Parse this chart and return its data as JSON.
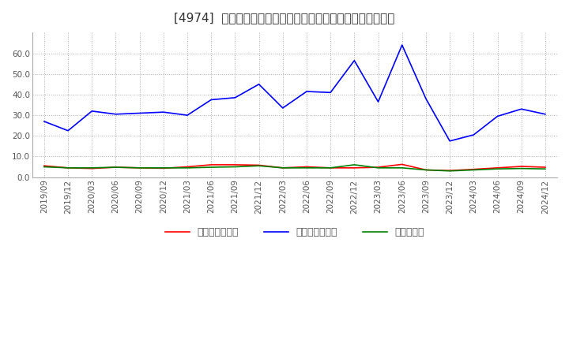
{
  "title": "[4974]  売上債権回転率、買入債務回転率、在庫回転率の推移",
  "dates": [
    "2019/09",
    "2019/12",
    "2020/03",
    "2020/06",
    "2020/09",
    "2020/12",
    "2021/03",
    "2021/06",
    "2021/09",
    "2021/12",
    "2022/03",
    "2022/06",
    "2022/09",
    "2022/12",
    "2023/03",
    "2023/06",
    "2023/09",
    "2023/12",
    "2024/03",
    "2024/06",
    "2024/09",
    "2024/12"
  ],
  "receivables_turnover": [
    5.5,
    4.5,
    4.2,
    4.8,
    4.5,
    4.3,
    5.0,
    6.0,
    6.0,
    5.8,
    4.5,
    5.0,
    4.5,
    4.5,
    4.8,
    6.2,
    3.5,
    3.2,
    3.8,
    4.5,
    5.2,
    4.8
  ],
  "payables_turnover": [
    27.0,
    22.5,
    32.0,
    30.5,
    31.0,
    31.5,
    30.0,
    37.5,
    38.5,
    45.0,
    33.5,
    41.5,
    41.0,
    56.5,
    36.5,
    64.0,
    38.0,
    17.5,
    20.5,
    29.5,
    33.0,
    30.5
  ],
  "inventory_turnover": [
    5.0,
    4.5,
    4.5,
    4.8,
    4.5,
    4.5,
    4.5,
    4.8,
    5.0,
    5.5,
    4.5,
    4.5,
    4.5,
    6.0,
    4.5,
    4.5,
    3.5,
    3.0,
    3.5,
    4.0,
    4.2,
    4.0
  ],
  "receivables_color": "#ff0000",
  "payables_color": "#0000ff",
  "inventory_color": "#008000",
  "ylim": [
    0.0,
    70.0
  ],
  "yticks": [
    0.0,
    10.0,
    20.0,
    30.0,
    40.0,
    50.0,
    60.0
  ],
  "background_color": "#ffffff",
  "plot_bg_color": "#ffffff",
  "grid_color": "#aaaaaa",
  "legend_labels": [
    "売上債権回転率",
    "買入債務回転率",
    "在庫回転率"
  ],
  "title_fontsize": 11,
  "tick_fontsize": 7.5,
  "legend_fontsize": 9
}
